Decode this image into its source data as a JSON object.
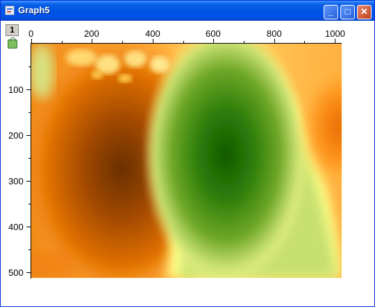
{
  "window": {
    "title": "Graph5",
    "buttons": {
      "minimize": "_",
      "maximize": "□",
      "close": "✕"
    }
  },
  "layer": {
    "label": "1"
  },
  "icons": {
    "app": "graph-window-icon",
    "lock": "lock-icon"
  },
  "chart_data": {
    "type": "heatmap",
    "x_ticks": [
      "0",
      "200",
      "400",
      "600",
      "800",
      "1000"
    ],
    "y_ticks": [
      "100",
      "200",
      "300",
      "400",
      "500"
    ],
    "xlim": [
      0,
      1025
    ],
    "ylim": [
      0,
      510
    ],
    "x_axis_position": "top",
    "y_axis_inverted": true,
    "colormap": [
      "#6a3000",
      "#c85a00",
      "#ff8a10",
      "#ffd060",
      "#ffff90",
      "#c8e070",
      "#80b030",
      "#3a8a10",
      "#1a6000"
    ]
  }
}
